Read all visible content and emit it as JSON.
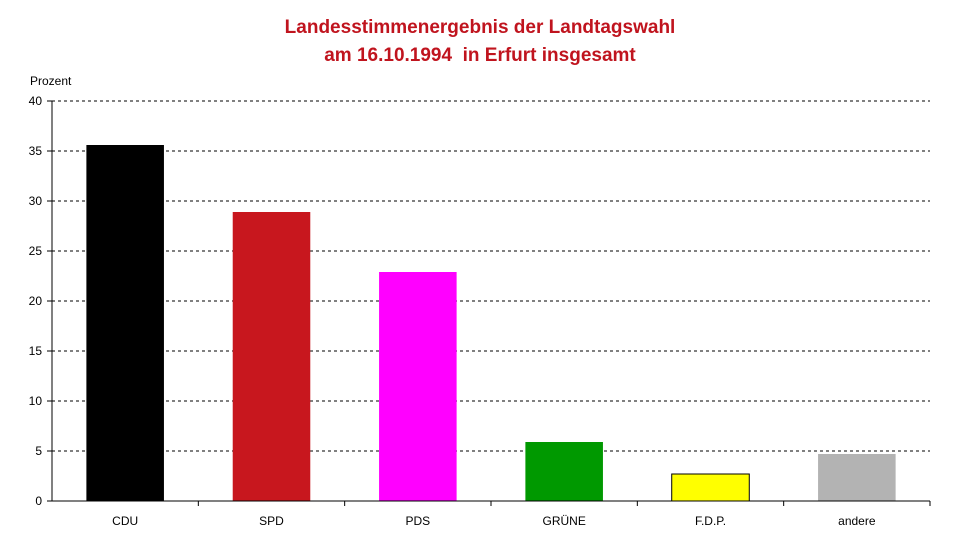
{
  "chart_data": {
    "type": "bar",
    "title_line1": "Landesstimmenergebnis der Landtagswahl",
    "title_line2": "am 16.10.1994  in Erfurt insgesamt",
    "xlabel": "",
    "ylabel": "Prozent",
    "ylim": [
      0,
      40
    ],
    "yticks": [
      0,
      5,
      10,
      15,
      20,
      25,
      30,
      35,
      40
    ],
    "grid": true,
    "legend": "none",
    "categories": [
      "CDU",
      "SPD",
      "PDS",
      "GRÜNE",
      "F.D.P.",
      "andere"
    ],
    "values": [
      35.6,
      28.9,
      22.9,
      5.9,
      2.7,
      4.7
    ],
    "colors": [
      "#000000",
      "#c8171e",
      "#ff00ff",
      "#009900",
      "#ffff00",
      "#b3b3b3"
    ]
  }
}
